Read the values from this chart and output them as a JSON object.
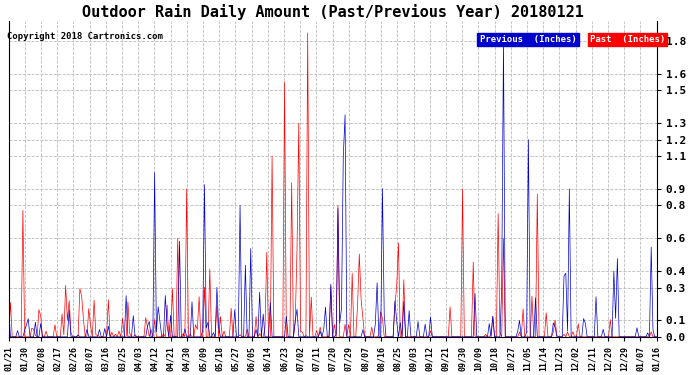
{
  "title": "Outdoor Rain Daily Amount (Past/Previous Year) 20180121",
  "copyright": "Copyright 2018 Cartronics.com",
  "yticks": [
    0.0,
    0.1,
    0.3,
    0.4,
    0.6,
    0.8,
    0.9,
    1.1,
    1.2,
    1.3,
    1.5,
    1.6,
    1.8
  ],
  "ylim": [
    0.0,
    1.92
  ],
  "legend_labels": [
    "Previous  (Inches)",
    "Past  (Inches)"
  ],
  "legend_colors_bg": [
    "#0000cc",
    "#ff0000"
  ],
  "bg_color": "#ffffff",
  "plot_bg_color": "#ffffff",
  "grid_color": "#bbbbbb",
  "line_color_prev": "#0000cc",
  "line_color_past": "#ff0000",
  "xtick_labels": [
    "01/21",
    "01/30",
    "02/08",
    "02/17",
    "02/26",
    "03/07",
    "03/16",
    "03/25",
    "04/03",
    "04/12",
    "04/21",
    "04/30",
    "05/09",
    "05/18",
    "05/27",
    "06/05",
    "06/14",
    "06/23",
    "07/02",
    "07/11",
    "07/20",
    "07/29",
    "08/07",
    "08/16",
    "08/25",
    "09/03",
    "09/12",
    "09/21",
    "09/30",
    "10/09",
    "10/18",
    "10/27",
    "11/05",
    "11/14",
    "11/23",
    "12/02",
    "12/11",
    "12/20",
    "12/29",
    "01/07",
    "01/16"
  ],
  "num_points": 365,
  "title_fontsize": 11,
  "copyright_fontsize": 6.5,
  "ytick_fontsize": 8,
  "xtick_fontsize": 6
}
